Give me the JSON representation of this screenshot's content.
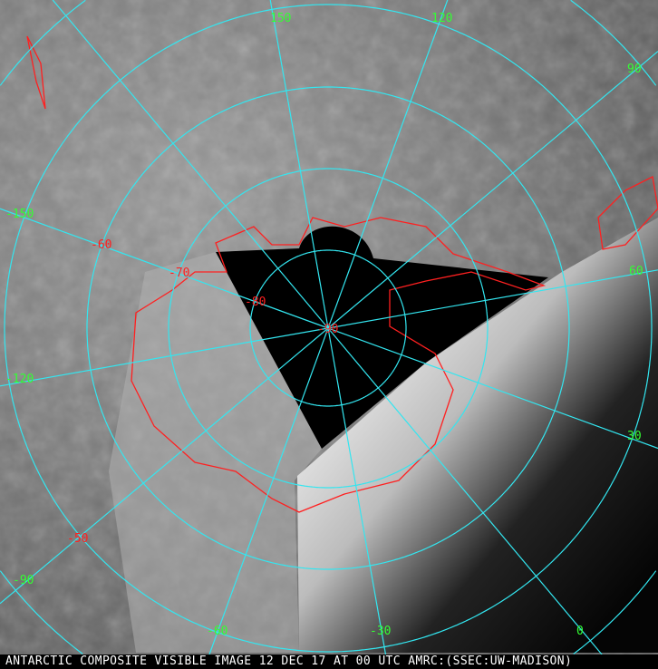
{
  "caption": "ANTARCTIC COMPOSITE VISIBLE IMAGE 12 DEC 17 AT 00 UTC AMRC:(SSEC:UW-MADISON)",
  "colors": {
    "grid": "#33e6f0",
    "coastline": "#ff2020",
    "longitude_labels": "#33ff33",
    "latitude_labels": "#ff2020"
  },
  "longitude_labels": [
    {
      "value": 0,
      "text": "0"
    },
    {
      "value": -30,
      "text": "-30"
    },
    {
      "value": -60,
      "text": "-60"
    },
    {
      "value": -90,
      "text": "-90"
    },
    {
      "value": -120,
      "text": "-120"
    },
    {
      "value": -150,
      "text": "-150"
    },
    {
      "value": 150,
      "text": "150"
    },
    {
      "value": 120,
      "text": "120"
    },
    {
      "value": 90,
      "text": "90"
    },
    {
      "value": 60,
      "text": "60"
    },
    {
      "value": 30,
      "text": "30"
    }
  ],
  "latitude_labels": [
    {
      "value": -90,
      "text": "-90"
    },
    {
      "value": -80,
      "text": "-80"
    },
    {
      "value": -70,
      "text": "-70"
    },
    {
      "value": -60,
      "text": "-60"
    },
    {
      "value": -50,
      "text": "-50"
    }
  ]
}
